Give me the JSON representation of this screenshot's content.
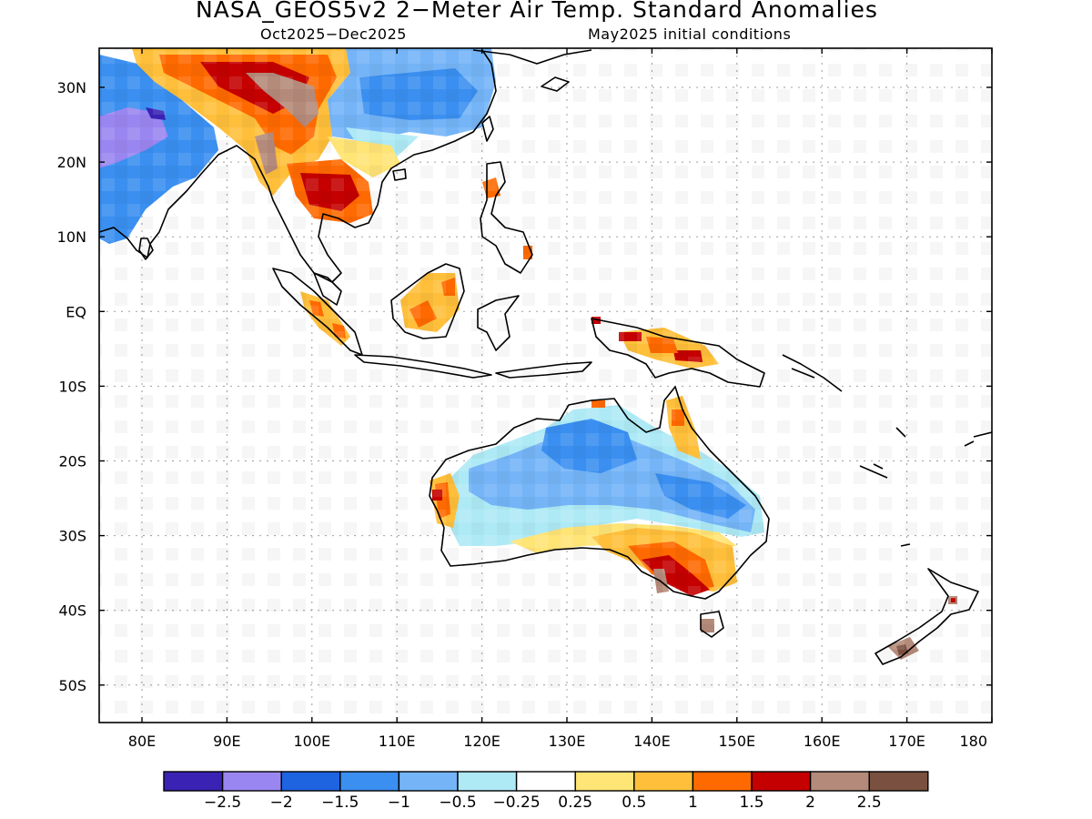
{
  "title": "NASA_GEOS5v2 2−Meter Air Temp. Standard Anomalies",
  "subtitle_left": "Oct2025−Dec2025",
  "subtitle_right": "May2025 initial conditions",
  "lat_labels": [
    "30N",
    "20N",
    "10N",
    "EQ",
    "10S",
    "20S",
    "30S",
    "40S",
    "50S"
  ],
  "lon_labels": [
    "80E",
    "90E",
    "100E",
    "110E",
    "120E",
    "130E",
    "140E",
    "150E",
    "160E",
    "170E",
    "180"
  ],
  "colorbar": {
    "colors": [
      "#3a22b4",
      "#9a86f0",
      "#1e63e0",
      "#3a8ff0",
      "#74b4f7",
      "#aeeaf6",
      "#ffffff",
      "#ffe476",
      "#ffbf3b",
      "#ff6a00",
      "#c40000",
      "#b48a7a",
      "#7a5040"
    ],
    "labels": [
      "−2.5",
      "−2",
      "−1.5",
      "−1",
      "−0.5",
      "−0.25",
      "0.25",
      "0.5",
      "1",
      "1.5",
      "2",
      "2.5"
    ]
  }
}
